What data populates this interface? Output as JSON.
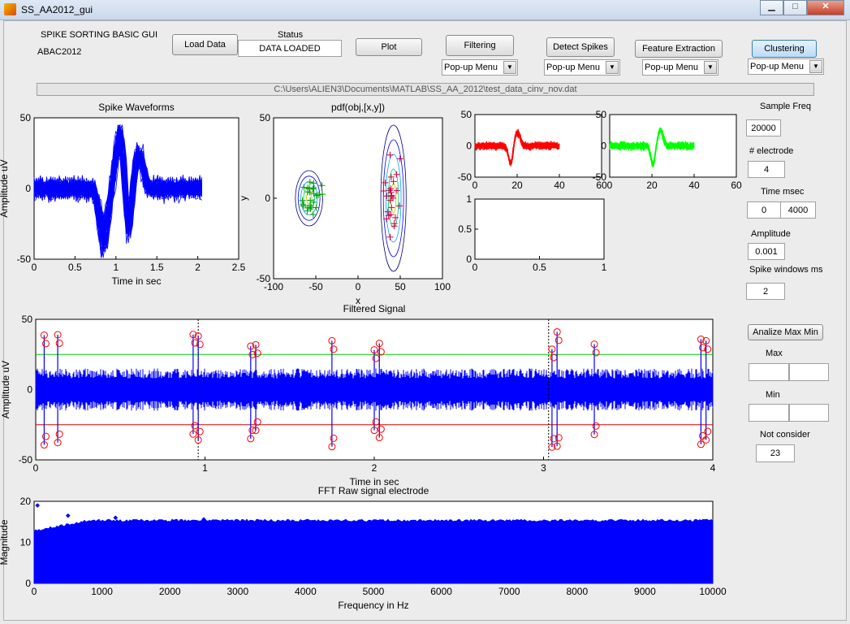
{
  "window": {
    "title": "SS_AA2012_gui",
    "minimize": "▁",
    "maximize": "□",
    "close": "✕"
  },
  "header": {
    "app_name": "SPIKE SORTING BASIC GUI",
    "app_sub": "ABAC2012",
    "status_label": "Status",
    "status_value": "DATA LOADED"
  },
  "buttons": {
    "load": "Load Data",
    "plot": "Plot",
    "filtering": "Filtering",
    "detect": "Detect Spikes",
    "feature": "Feature Extraction",
    "clustering": "Clustering",
    "analize": "Analize Max Min"
  },
  "popups": {
    "filtering": "Pop-up Menu",
    "detect": "Pop-up Menu",
    "feature": "Pop-up Menu",
    "clustering": "Pop-up Menu"
  },
  "filepath": "C:\\Users\\ALIEN3\\Documents\\MATLAB\\SS_AA_2012\\test_data_cinv_nov.dat",
  "params": {
    "sample_freq_label": "Sample Freq",
    "sample_freq": "20000",
    "electrode_label": "# electrode",
    "electrode": "4",
    "time_label": "Time msec",
    "time_start": "0",
    "time_end": "4000",
    "amplitude_label": "Amplitude",
    "amplitude": "0.001",
    "window_label": "Spike windows ms",
    "window": "2",
    "max_label": "Max",
    "max_a": "",
    "max_b": "",
    "min_label": "Min",
    "min_a": "",
    "min_b": "",
    "notconsider_label": "Not consider",
    "notconsider": "23"
  },
  "chart_data": [
    {
      "type": "line",
      "title": "Spike Waveforms",
      "xlabel": "Time in sec",
      "ylabel": "Amplitude uV",
      "xlim": [
        0,
        2.5
      ],
      "ylim": [
        -50,
        50
      ],
      "xticks": [
        "0",
        "0.5",
        "1",
        "1.5",
        "2",
        "2.5"
      ],
      "yticks": [
        "-50",
        "0",
        "50"
      ],
      "color": "#0000ff"
    },
    {
      "type": "scatter",
      "title": "pdf(obj,[x,y])",
      "xlabel": "x",
      "ylabel": "y",
      "xlim": [
        -100,
        100
      ],
      "ylim": [
        -50,
        50
      ],
      "xticks": [
        "-100",
        "-50",
        "0",
        "50",
        "100"
      ],
      "yticks": [
        "-50",
        "0",
        "50"
      ],
      "clusters": [
        {
          "center": [
            -58,
            0
          ],
          "color": "#00a000"
        },
        {
          "center": [
            42,
            0
          ],
          "color": "#cc0044"
        }
      ]
    },
    {
      "type": "line",
      "title": "",
      "xlim": [
        0,
        60
      ],
      "ylim": [
        -50,
        50
      ],
      "xticks": [
        "0",
        "20",
        "40",
        "60"
      ],
      "yticks": [
        "-50",
        "0",
        "50"
      ],
      "color": "#ff0000"
    },
    {
      "type": "line",
      "title": "",
      "xlim": [
        0,
        60
      ],
      "ylim": [
        -50,
        50
      ],
      "xticks": [
        "0",
        "20",
        "40",
        "60"
      ],
      "yticks": [
        "-50",
        "0",
        "50"
      ],
      "color": "#00ff00"
    },
    {
      "type": "line",
      "title": "",
      "xlim": [
        0,
        1
      ],
      "ylim": [
        0,
        1
      ],
      "xticks": [
        "0",
        "0.5",
        "1"
      ],
      "yticks": [
        "0",
        "0.5",
        "1"
      ]
    },
    {
      "type": "line",
      "title": "Filtered Signal",
      "xlabel": "Time in sec",
      "ylabel": "Amplitude uV",
      "xlim": [
        0,
        4
      ],
      "ylim": [
        -50,
        50
      ],
      "xticks": [
        "0",
        "1",
        "2",
        "3",
        "4"
      ],
      "yticks": [
        "-50",
        "0",
        "50"
      ],
      "thresholds": [
        {
          "y": 25,
          "color": "#00cc00"
        },
        {
          "y": -25,
          "color": "#dd0000"
        }
      ],
      "spike_times": [
        0.05,
        0.13,
        0.93,
        0.96,
        1.27,
        1.3,
        1.75,
        2.0,
        2.03,
        3.05,
        3.08,
        3.3,
        3.93,
        3.96
      ]
    },
    {
      "type": "area",
      "title": "FFT Raw signal electrode",
      "xlabel": "Frequency in Hz",
      "ylabel": "Magnitude",
      "xlim": [
        0,
        10000
      ],
      "ylim": [
        0,
        20
      ],
      "xticks": [
        "0",
        "1000",
        "2000",
        "3000",
        "4000",
        "5000",
        "6000",
        "7000",
        "8000",
        "9000",
        "10000"
      ],
      "yticks": [
        "0",
        "10",
        "20"
      ],
      "level": 15
    }
  ]
}
